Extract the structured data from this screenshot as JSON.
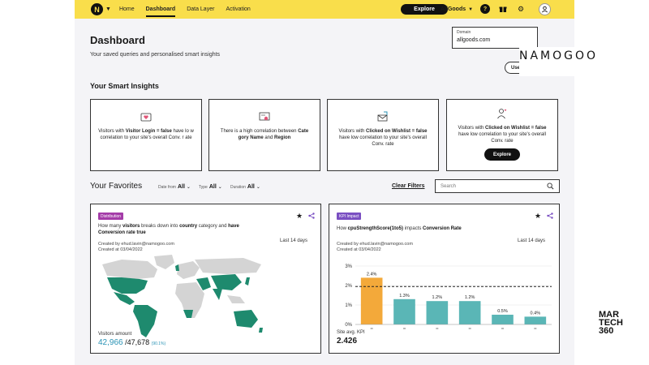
{
  "topbar": {
    "logo_letter": "N",
    "nav": [
      "Home",
      "Dashboard",
      "Data Layer",
      "Activation"
    ],
    "explore_label": "Explore",
    "account": "AllGoods",
    "accent": "#f9de4b"
  },
  "header": {
    "title": "Dashboard",
    "subtitle": "Your saved queries and personalised smart insights",
    "domain_label": "Domain",
    "domain_value": "allgoods.com",
    "use_button": "Use"
  },
  "insights": {
    "title": "Your Smart Insights",
    "cards": [
      {
        "pre": "Visitors with ",
        "bold": "Visitor Login = false",
        "post": " have lo w correlation to your site's overall Conv. r ate",
        "icon": "heart-icon"
      },
      {
        "pre": "There is a high correlation between ",
        "bold": "Cate gory Name",
        "mid": " and ",
        "bold2": "Region",
        "icon": "certificate-icon"
      },
      {
        "pre": "Visitors with ",
        "bold": "Clicked on Wishlist = false",
        "post": " have low correlation to your site's overall Conv. rate",
        "icon": "mail-icon"
      },
      {
        "pre": "Visitors with ",
        "bold": "Clicked on Wishlist = false",
        "post": " have low correlation to your site's overall Conv. rate",
        "icon": "user-heart-icon",
        "button": "Explore"
      }
    ]
  },
  "favorites": {
    "title": "Your Favorites",
    "filters": [
      {
        "label": "Date from",
        "value": "All"
      },
      {
        "label": "Type",
        "value": "All"
      },
      {
        "label": "Duration",
        "value": "All"
      }
    ],
    "clear_filters": "Clear Filters",
    "search_placeholder": "Search",
    "cards": [
      {
        "badge": "Distribution",
        "badge_color": "#a43ca8",
        "desc_1": "How many ",
        "desc_b1": "visitors",
        "desc_2": " breaks down into ",
        "desc_b2": "country",
        "desc_3": " category and ",
        "desc_b3": "have Conversion rate true",
        "created_by": "Created by ehud.lavin@namogoo.com",
        "created_at": "Created at 03/04/2022",
        "period": "Last 14 days",
        "visitors_label": "Visitors amount",
        "visitors_value": "42,966",
        "visitors_total": "/47,678",
        "visitors_pct": "(90.1%)"
      },
      {
        "badge": "KPI Impact",
        "badge_color": "#7a4fc2",
        "desc_1": "How ",
        "desc_b1": "cpuStrengthScore(1to5)",
        "desc_2": " impacts ",
        "desc_b2": "Conversion Rate",
        "created_by": "Created by ehud.lavin@namogoo.com",
        "created_at": "Created at 03/04/2022",
        "period": "Last 14 days",
        "site_label": "Site avg. KPI",
        "site_value": "2.426"
      }
    ]
  },
  "chart_data": {
    "type": "bar",
    "categories": [
      "",
      "",
      "",
      "",
      "",
      ""
    ],
    "values": [
      2.4,
      1.3,
      1.2,
      1.2,
      0.5,
      0.4
    ],
    "data_labels": [
      "2.4%",
      "1.3%",
      "1.2%",
      "1.2%",
      "0.5%",
      "0.4%"
    ],
    "ticks": [
      "3%",
      "2%",
      "1%",
      "0%"
    ],
    "ylim": [
      0,
      3
    ],
    "reference_line": 1.95,
    "colors": {
      "highlight": "#f3a93a",
      "bar": "#5ab6b6"
    }
  },
  "brand_marks": {
    "namogoo": "NAMOGOO",
    "martech_1": "MAR",
    "martech_2": "TECH",
    "martech_3": "360"
  }
}
